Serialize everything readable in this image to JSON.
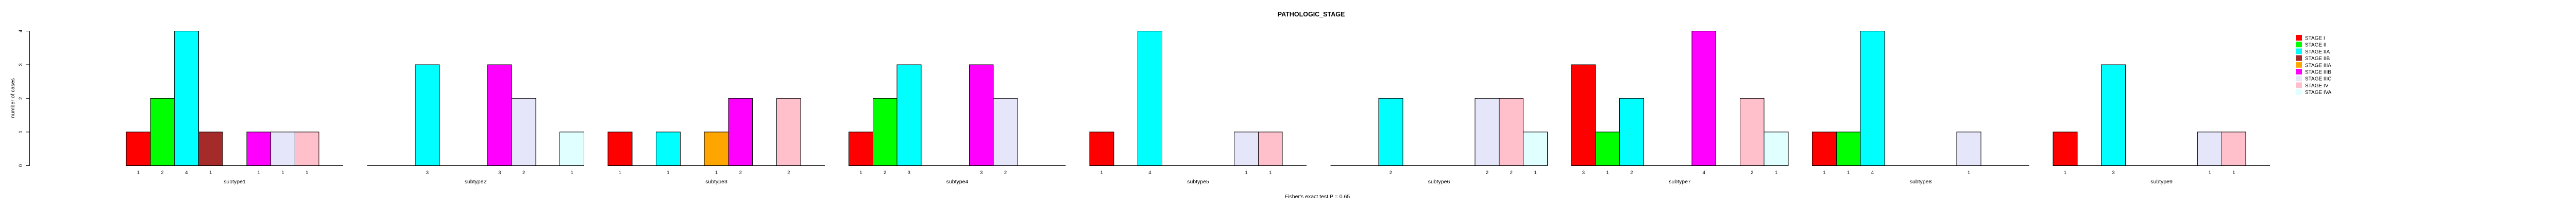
{
  "title": "PATHOLOGIC_STAGE",
  "footer": "Fisher's exact test P = 0.65",
  "y_axis": {
    "label": "number of cases",
    "ticks": [
      "0",
      "1",
      "2",
      "3",
      "4"
    ]
  },
  "legend": {
    "position": "right",
    "entries": [
      {
        "label": "STAGE I",
        "color": "#FF0000"
      },
      {
        "label": "STAGE II",
        "color": "#00FF00"
      },
      {
        "label": "STAGE IIA",
        "color": "#00FFFF"
      },
      {
        "label": "STAGE IIB",
        "color": "#A52A2A"
      },
      {
        "label": "STAGE IIIA",
        "color": "#FFA500"
      },
      {
        "label": "STAGE IIIB",
        "color": "#FF00FF"
      },
      {
        "label": "STAGE IIIC",
        "color": "#E6E6FA"
      },
      {
        "label": "STAGE IV",
        "color": "#FFC0CB"
      },
      {
        "label": "STAGE IVA",
        "color": "#E0FFFF"
      }
    ]
  },
  "chart_data": {
    "type": "bar",
    "title": "PATHOLOGIC_STAGE",
    "xlabel": "",
    "ylabel": "number of cases",
    "ylim": [
      0,
      4
    ],
    "yticks": [
      0,
      1,
      2,
      3,
      4
    ],
    "grid": false,
    "legend_position": "right",
    "annotation": "Fisher's exact test P = 0.65",
    "bar_labels": "counts shown under each nonzero bar",
    "categories": [
      "subtype1",
      "subtype2",
      "subtype3",
      "subtype4",
      "subtype5",
      "subtype6",
      "subtype7",
      "subtype8",
      "subtype9"
    ],
    "series": [
      {
        "name": "STAGE I",
        "color": "#FF0000",
        "values": [
          1,
          0,
          1,
          1,
          1,
          0,
          3,
          1,
          1
        ]
      },
      {
        "name": "STAGE II",
        "color": "#00FF00",
        "values": [
          2,
          0,
          0,
          2,
          0,
          0,
          1,
          1,
          0
        ]
      },
      {
        "name": "STAGE IIA",
        "color": "#00FFFF",
        "values": [
          4,
          3,
          1,
          3,
          4,
          2,
          2,
          4,
          3
        ]
      },
      {
        "name": "STAGE IIB",
        "color": "#A52A2A",
        "values": [
          1,
          0,
          0,
          0,
          0,
          0,
          0,
          0,
          0
        ]
      },
      {
        "name": "STAGE IIIA",
        "color": "#FFA500",
        "values": [
          0,
          0,
          1,
          0,
          0,
          0,
          0,
          0,
          0
        ]
      },
      {
        "name": "STAGE IIIB",
        "color": "#FF00FF",
        "values": [
          1,
          3,
          2,
          3,
          0,
          0,
          4,
          0,
          0
        ]
      },
      {
        "name": "STAGE IIIC",
        "color": "#E6E6FA",
        "values": [
          1,
          2,
          0,
          2,
          1,
          2,
          0,
          1,
          1
        ]
      },
      {
        "name": "STAGE IV",
        "color": "#FFC0CB",
        "values": [
          1,
          0,
          2,
          0,
          1,
          2,
          2,
          0,
          1
        ]
      },
      {
        "name": "STAGE IVA",
        "color": "#E0FFFF",
        "values": [
          0,
          1,
          0,
          0,
          0,
          1,
          1,
          0,
          0
        ]
      }
    ]
  }
}
